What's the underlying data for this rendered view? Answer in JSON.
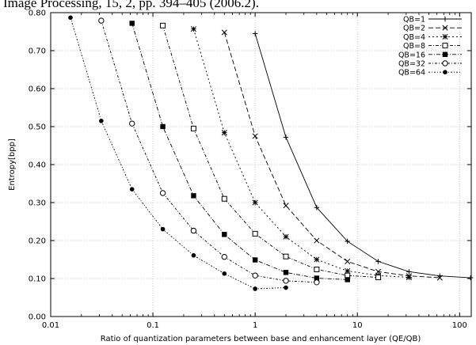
{
  "caption": "Image Processing, 15, 2, pp. 394–405 (2006.2).",
  "chart_data": {
    "type": "line",
    "title": "",
    "xlabel": "Ratio of quantization parameters between base and enhancement layer (QE/QB)",
    "ylabel": "Entropy[bpp]",
    "x_scale": "log",
    "xlim": [
      0.01,
      130
    ],
    "ylim": [
      0,
      0.8
    ],
    "x_ticks": [
      0.01,
      0.1,
      1,
      10,
      100
    ],
    "x_tick_labels": [
      "0.01",
      "0.1",
      "1",
      "10",
      "100"
    ],
    "y_ticks": [
      0,
      0.1,
      0.2,
      0.3,
      0.4,
      0.5,
      0.6,
      0.7,
      0.8
    ],
    "y_tick_labels": [
      "0.00",
      "0.10",
      "0.20",
      "0.30",
      "0.40",
      "0.50",
      "0.60",
      "0.70",
      "0.80"
    ],
    "grid": true,
    "legend_position": "top-right",
    "series": [
      {
        "name": "QB=1",
        "marker": "plus",
        "dash": "none",
        "x": [
          1,
          2,
          4,
          8,
          16,
          32,
          64,
          128
        ],
        "y": [
          0.745,
          0.472,
          0.287,
          0.198,
          0.145,
          0.118,
          0.107,
          0.102
        ]
      },
      {
        "name": "QB=2",
        "marker": "x",
        "dash": "6,3",
        "x": [
          0.5,
          1,
          2,
          4,
          8,
          16,
          32,
          64
        ],
        "y": [
          0.748,
          0.475,
          0.292,
          0.2,
          0.145,
          0.118,
          0.107,
          0.102
        ]
      },
      {
        "name": "QB=4",
        "marker": "star",
        "dash": "2,3",
        "x": [
          0.25,
          0.5,
          1,
          2,
          4,
          8,
          16,
          32
        ],
        "y": [
          0.757,
          0.484,
          0.3,
          0.21,
          0.15,
          0.12,
          0.108,
          0.103
        ]
      },
      {
        "name": "QB=8",
        "marker": "square-open",
        "dash": "4,2,1,2",
        "x": [
          0.125,
          0.25,
          0.5,
          1,
          2,
          4,
          8,
          16
        ],
        "y": [
          0.766,
          0.495,
          0.31,
          0.218,
          0.158,
          0.124,
          0.108,
          0.103
        ]
      },
      {
        "name": "QB=16",
        "marker": "square-filled",
        "dash": "5,2,1,2",
        "x": [
          0.0625,
          0.125,
          0.25,
          0.5,
          1,
          2,
          4,
          8
        ],
        "y": [
          0.772,
          0.5,
          0.318,
          0.216,
          0.149,
          0.116,
          0.101,
          0.097
        ]
      },
      {
        "name": "QB=32",
        "marker": "circle-open",
        "dash": "3,2,1,2",
        "x": [
          0.03125,
          0.0625,
          0.125,
          0.25,
          0.5,
          1,
          2,
          4
        ],
        "y": [
          0.779,
          0.508,
          0.325,
          0.226,
          0.157,
          0.108,
          0.094,
          0.09
        ]
      },
      {
        "name": "QB=64",
        "marker": "circle-filled",
        "dash": "2,2,1,2",
        "x": [
          0.015625,
          0.03125,
          0.0625,
          0.125,
          0.25,
          0.5,
          1,
          2
        ],
        "y": [
          0.787,
          0.515,
          0.335,
          0.23,
          0.161,
          0.113,
          0.073,
          0.076
        ]
      }
    ]
  }
}
